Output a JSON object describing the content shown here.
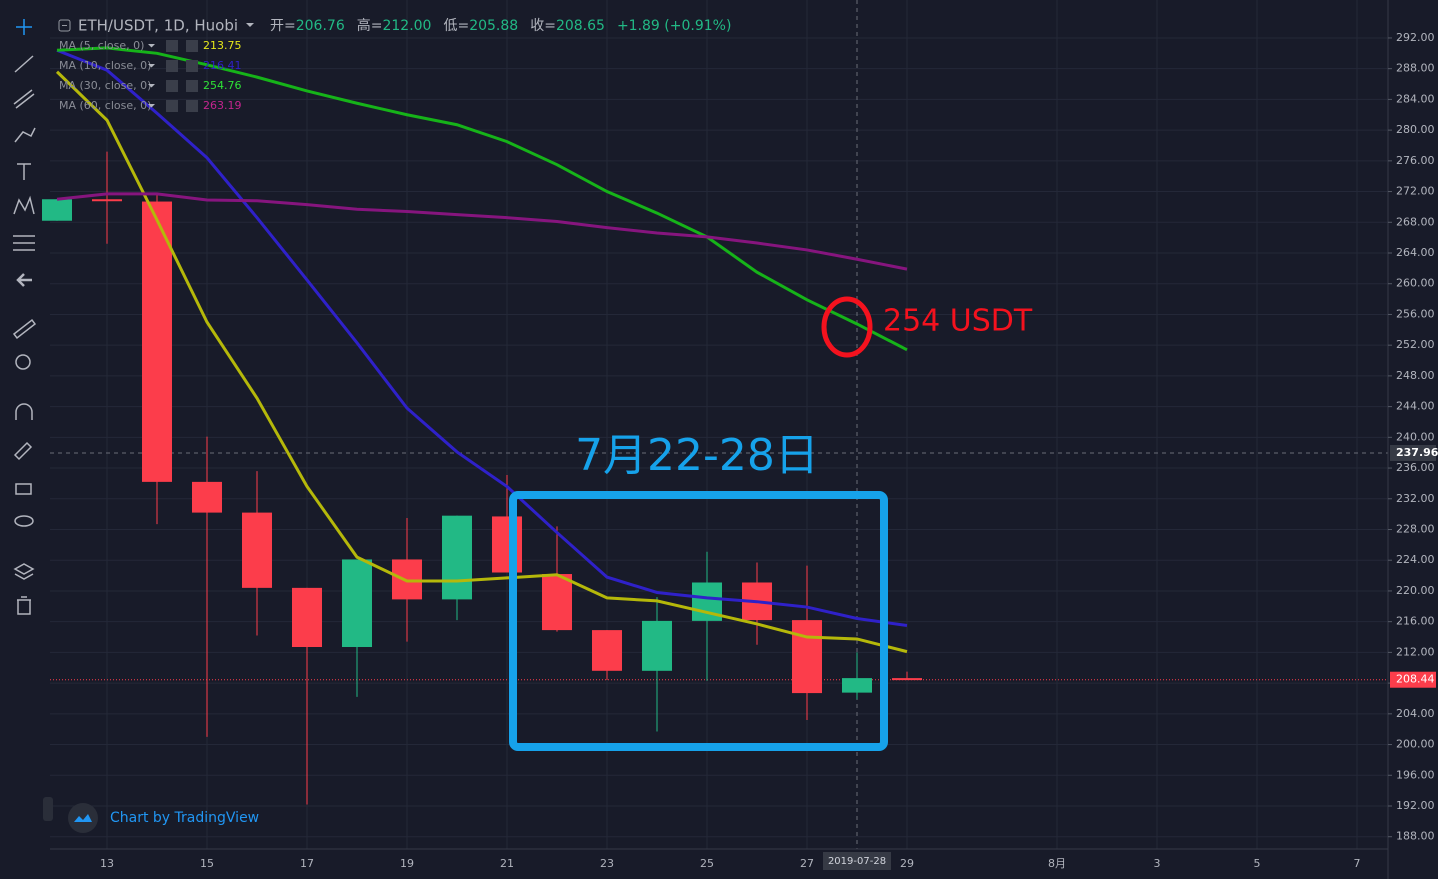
{
  "chart_data": {
    "type": "candlestick",
    "title": "ETH/USDT, 1D, Huobi",
    "stats": [
      {
        "label": "开=",
        "value": "206.76"
      },
      {
        "label": "高=",
        "value": "212.00"
      },
      {
        "label": "低=",
        "value": "205.88"
      },
      {
        "label": "收=",
        "value": "208.65"
      }
    ],
    "change": "+1.89 (+0.91%)",
    "categories": [
      null,
      "13",
      null,
      "15",
      null,
      "17",
      null,
      "19",
      null,
      "21",
      null,
      "23",
      null,
      "25",
      null,
      "27",
      "2019-07-28",
      "29",
      null,
      null,
      "8月",
      null,
      "3",
      null,
      "5",
      null,
      "7"
    ],
    "open": [
      268.2,
      271.0,
      270.7,
      234.2,
      230.2,
      220.4,
      212.7,
      224.1,
      218.9,
      229.7,
      222.2,
      214.9,
      209.6,
      216.1,
      221.1,
      216.2,
      206.76,
      208.65,
      null,
      null,
      null,
      null,
      null,
      null,
      null,
      null,
      null
    ],
    "high": [
      271.0,
      277.2,
      271.8,
      240.1,
      235.6,
      220.4,
      224.1,
      229.5,
      229.8,
      235.1,
      228.4,
      214.9,
      219.2,
      225.1,
      223.7,
      223.3,
      212.0,
      209.5,
      null,
      null,
      null,
      null,
      null,
      null,
      null,
      null,
      null
    ],
    "low": [
      268.2,
      265.2,
      228.7,
      201.0,
      214.2,
      192.2,
      206.2,
      213.4,
      216.2,
      222.4,
      214.7,
      208.4,
      201.7,
      208.3,
      213.0,
      203.2,
      205.88,
      208.44,
      null,
      null,
      null,
      null,
      null,
      null,
      null,
      null,
      null
    ],
    "close": [
      271.0,
      270.8,
      234.2,
      230.2,
      220.4,
      212.7,
      224.1,
      218.9,
      229.8,
      222.4,
      214.9,
      209.6,
      216.1,
      221.1,
      216.2,
      206.7,
      208.65,
      208.44,
      null,
      null,
      null,
      null,
      null,
      null,
      null,
      null,
      null
    ],
    "up_color": "#22b985",
    "down_color": "#fc3d4b",
    "series": [
      {
        "name": "MA (5, close, 0)",
        "color": "#b5b80a",
        "value_label": "213.75",
        "values": [
          287.6,
          281.3,
          268.3,
          255.0,
          245.1,
          233.6,
          224.4,
          221.3,
          221.3,
          221.7,
          222.1,
          219.1,
          218.7,
          217.2,
          215.7,
          214.0,
          213.75,
          212.1,
          null,
          null,
          null,
          null,
          null,
          null,
          null,
          null,
          null
        ]
      },
      {
        "name": "MA (10, close, 0)",
        "color": "#2f21c9",
        "value_label": "216.41",
        "values": [
          290.4,
          287.8,
          282.2,
          276.4,
          268.6,
          260.5,
          252.3,
          243.8,
          238.1,
          233.6,
          227.6,
          221.8,
          219.8,
          219.1,
          218.6,
          217.9,
          216.41,
          215.5,
          null,
          null,
          null,
          null,
          null,
          null,
          null,
          null,
          null
        ]
      },
      {
        "name": "MA (30, close, 0)",
        "color": "#16b319",
        "value_label": "254.76",
        "values": [
          290.4,
          290.7,
          290.0,
          288.5,
          286.9,
          285.1,
          283.5,
          282.0,
          280.7,
          278.5,
          275.5,
          272.0,
          269.2,
          266.1,
          261.5,
          257.9,
          254.76,
          251.4,
          null,
          null,
          null,
          null,
          null,
          null,
          null,
          null,
          null
        ]
      },
      {
        "name": "MA (60, close, 0)",
        "color": "#86157e",
        "value_label": "263.19",
        "values": [
          271.0,
          271.7,
          271.7,
          270.9,
          270.8,
          270.3,
          269.7,
          269.4,
          269.0,
          268.6,
          268.1,
          267.3,
          266.6,
          266.1,
          265.3,
          264.4,
          263.19,
          261.9,
          null,
          null,
          null,
          null,
          null,
          null,
          null,
          null,
          null
        ]
      }
    ],
    "ylim": [
      186.4,
      295.9
    ],
    "yticks": [
      {
        "value": 188,
        "label": "188.00"
      },
      {
        "value": 192,
        "label": "192.00"
      },
      {
        "value": 196,
        "label": "196.00"
      },
      {
        "value": 200,
        "label": "200.00"
      },
      {
        "value": 204,
        "label": "204.00"
      },
      {
        "value": 208,
        "label": "208.00"
      },
      {
        "value": 212,
        "label": "212.00"
      },
      {
        "value": 216,
        "label": "216.00"
      },
      {
        "value": 220,
        "label": "220.00"
      },
      {
        "value": 224,
        "label": "224.00"
      },
      {
        "value": 228,
        "label": "228.00"
      },
      {
        "value": 232,
        "label": "232.00"
      },
      {
        "value": 236,
        "label": "236.00"
      },
      {
        "value": 240,
        "label": "240.00"
      },
      {
        "value": 244,
        "label": "244.00"
      },
      {
        "value": 248,
        "label": "248.00"
      },
      {
        "value": 252,
        "label": "252.00"
      },
      {
        "value": 256,
        "label": "256.00"
      },
      {
        "value": 260,
        "label": "260.00"
      },
      {
        "value": 264,
        "label": "264.00"
      },
      {
        "value": 268,
        "label": "268.00"
      },
      {
        "value": 272,
        "label": "272.00"
      },
      {
        "value": 276,
        "label": "276.00"
      },
      {
        "value": 280,
        "label": "280.00"
      },
      {
        "value": 284,
        "label": "284.00"
      },
      {
        "value": 288,
        "label": "288.00"
      },
      {
        "value": 292,
        "label": "292.00"
      }
    ],
    "crosshair_price": {
      "value": 237.96,
      "label": "237.96"
    },
    "last_price": {
      "value": 208.44,
      "label": "208.44"
    },
    "crosshair_index": 16,
    "grid": true,
    "annotations": [
      "254 USDT",
      "7月22-28日"
    ],
    "watermark": "Chart by TradingView"
  }
}
